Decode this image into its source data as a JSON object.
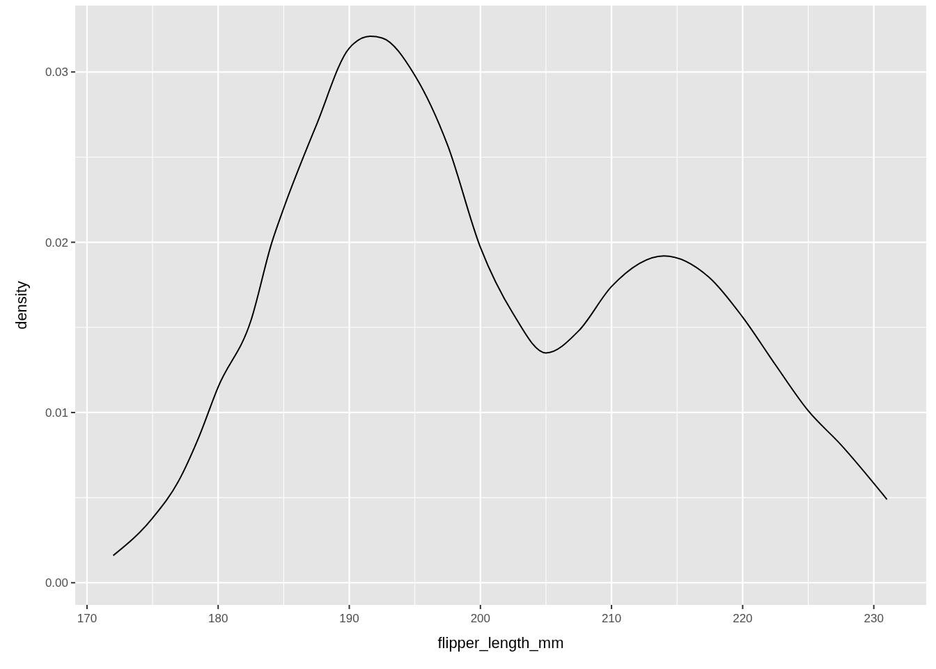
{
  "chart_data": {
    "type": "line",
    "xlabel": "flipper_length_mm",
    "ylabel": "density",
    "x": [
      172,
      175,
      177,
      178.5,
      180,
      182.5,
      184.1,
      185,
      187.5,
      190,
      191.6,
      192.5,
      195,
      197.5,
      200,
      202.5,
      205,
      207.5,
      210,
      214,
      217.5,
      220,
      222.5,
      225,
      227.5,
      231
    ],
    "series": [
      {
        "color": "#000000",
        "values": [
          0.0016,
          0.0038,
          0.006,
          0.0085,
          0.0115,
          0.0154,
          0.02,
          0.022,
          0.0269,
          0.0314,
          0.0321,
          0.032,
          0.0298,
          0.0257,
          0.0197,
          0.0158,
          0.0135,
          0.0148,
          0.0174,
          0.0192,
          0.0179,
          0.0156,
          0.0128,
          0.0101,
          0.0081,
          0.0049
        ]
      }
    ],
    "xlim": [
      169.1,
      234
    ],
    "ylim": [
      -0.0013,
      0.0339
    ],
    "xticks": [
      170,
      {
        "value": 175,
        "label": null
      },
      180,
      {
        "value": 185,
        "label": null
      },
      190,
      {
        "value": 195,
        "label": null
      },
      200,
      {
        "value": 205,
        "label": null
      },
      210,
      {
        "value": 215,
        "label": null
      },
      220,
      {
        "value": 225,
        "label": null
      },
      230
    ],
    "yticks": [
      {
        "value": 0,
        "label": "0.00"
      },
      {
        "value": 0.005,
        "label": null
      },
      {
        "value": 0.01,
        "label": "0.01"
      },
      {
        "value": 0.015,
        "label": null
      },
      {
        "value": 0.02,
        "label": "0.02"
      },
      {
        "value": 0.025,
        "label": null
      },
      {
        "value": 0.03,
        "label": "0.03"
      }
    ],
    "grid": true
  }
}
